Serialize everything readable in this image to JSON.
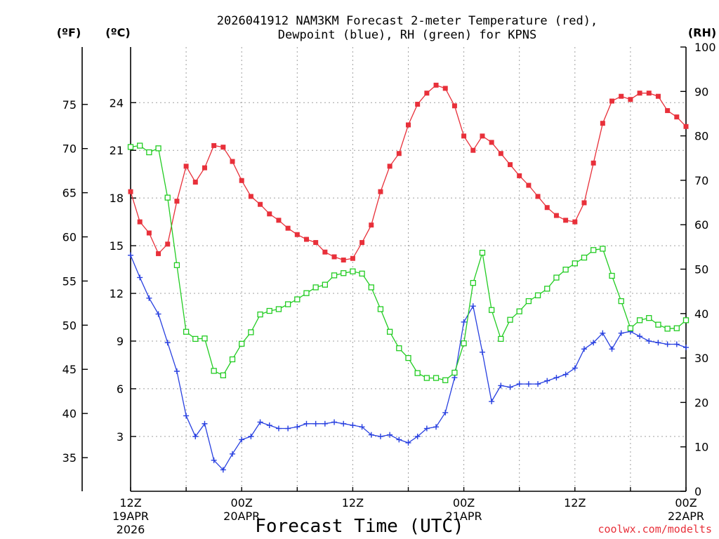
{
  "chart_data": {
    "type": "line",
    "title_line1": "2026041912 NAM3KM Forecast 2-meter Temperature (red),",
    "title_line2": "Dewpoint (blue), RH (green) for KPNS",
    "xlabel": "Forecast Time (UTC)",
    "credit": "coolwx.com/modelts",
    "left_unit_f": "(ºF)",
    "left_unit_c": "(ºC)",
    "right_unit": "(RH)",
    "x_hours_range": [
      0,
      60
    ],
    "c_range": [
      -0.45,
      27.5
    ],
    "rh_range": [
      0,
      100
    ],
    "f_ticks": [
      "75",
      "70",
      "65",
      "60",
      "55",
      "50",
      "45",
      "40",
      "35"
    ],
    "c_ticks": [
      "24",
      "21",
      "18",
      "15",
      "12",
      "9",
      "6",
      "3"
    ],
    "rh_ticks": [
      "100",
      "90",
      "80",
      "70",
      "60",
      "50",
      "40",
      "30",
      "20",
      "10",
      "0"
    ],
    "x_ticks": [
      {
        "hour": 0,
        "lines": [
          "12Z",
          "19APR",
          "2026"
        ]
      },
      {
        "hour": 12,
        "lines": [
          "00Z",
          "20APR"
        ]
      },
      {
        "hour": 24,
        "lines": [
          "12Z"
        ]
      },
      {
        "hour": 36,
        "lines": [
          "00Z",
          "21APR"
        ]
      },
      {
        "hour": 48,
        "lines": [
          "12Z"
        ]
      },
      {
        "hour": 60,
        "lines": [
          "00Z",
          "22APR"
        ]
      }
    ],
    "series": [
      {
        "name": "Temperature",
        "unit": "C",
        "color": "#e8303a",
        "marker": "filled-square",
        "values": [
          18.4,
          16.5,
          15.8,
          14.5,
          15.1,
          17.8,
          20.0,
          19.0,
          19.9,
          21.3,
          21.2,
          20.3,
          19.1,
          18.1,
          17.6,
          17.0,
          16.6,
          16.1,
          15.7,
          15.4,
          15.2,
          14.6,
          14.3,
          14.1,
          14.2,
          15.2,
          16.3,
          18.4,
          20.0,
          20.8,
          22.6,
          23.9,
          24.6,
          25.1,
          24.9,
          23.8,
          21.9,
          21.0,
          21.9,
          21.5,
          20.8,
          20.1,
          19.4,
          18.8,
          18.1,
          17.4,
          16.9,
          16.6,
          16.5,
          17.7,
          20.2,
          22.7,
          24.1,
          24.4,
          24.2,
          24.6,
          24.6,
          24.4,
          23.5,
          23.1,
          22.5
        ]
      },
      {
        "name": "Dewpoint",
        "unit": "C",
        "color": "#2840e0",
        "marker": "plus",
        "values": [
          14.4,
          13.0,
          11.7,
          10.7,
          8.9,
          7.1,
          4.3,
          3.0,
          3.8,
          1.5,
          0.9,
          1.9,
          2.8,
          3.0,
          3.9,
          3.7,
          3.5,
          3.5,
          3.6,
          3.8,
          3.8,
          3.8,
          3.9,
          3.8,
          3.7,
          3.6,
          3.1,
          3.0,
          3.1,
          2.8,
          2.6,
          3.0,
          3.5,
          3.6,
          4.5,
          6.7,
          10.2,
          11.2,
          8.3,
          5.2,
          6.2,
          6.1,
          6.3,
          6.3,
          6.3,
          6.5,
          6.7,
          6.9,
          7.3,
          8.5,
          8.9,
          9.5,
          8.5,
          9.5,
          9.6,
          9.3,
          9.0,
          8.9,
          8.8,
          8.8,
          8.6
        ]
      },
      {
        "name": "RH",
        "unit": "%",
        "color": "#22cc22",
        "marker": "open-square",
        "values": [
          77.5,
          77.8,
          76.3,
          77.2,
          66.1,
          50.9,
          35.9,
          34.3,
          34.4,
          27.1,
          26.1,
          29.7,
          33.2,
          35.8,
          39.8,
          40.6,
          41.0,
          42.1,
          43.2,
          44.6,
          45.9,
          46.5,
          48.6,
          49.1,
          49.5,
          49.0,
          45.9,
          41.0,
          35.9,
          32.2,
          30.0,
          26.6,
          25.5,
          25.5,
          25.0,
          26.7,
          33.3,
          46.9,
          53.7,
          40.8,
          34.3,
          38.6,
          40.5,
          42.8,
          44.1,
          45.6,
          48.1,
          49.9,
          51.3,
          52.6,
          54.3,
          54.6,
          48.5,
          42.8,
          36.7,
          38.5,
          39.0,
          37.5,
          36.6,
          36.7,
          38.5
        ]
      }
    ]
  }
}
